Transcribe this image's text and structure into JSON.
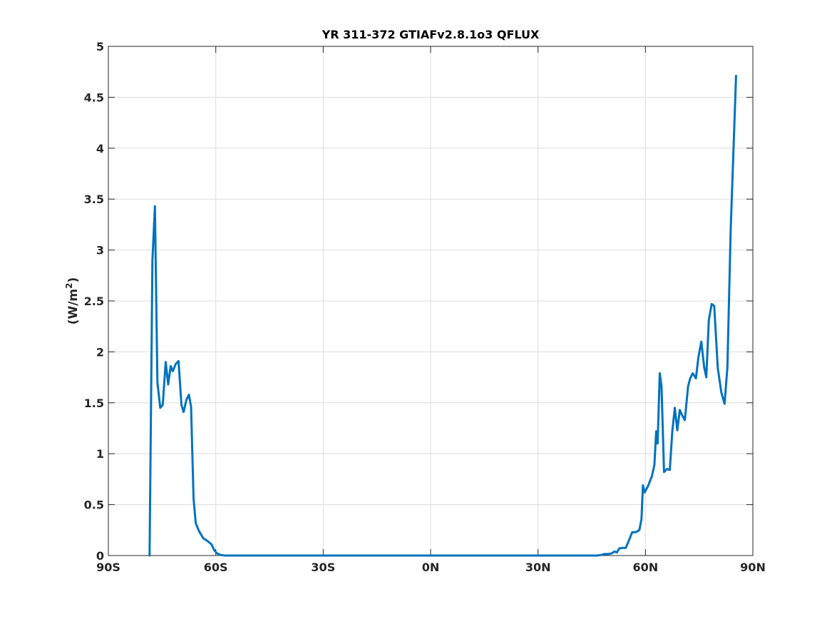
{
  "chart_data": {
    "type": "line",
    "title": "YR 311-372 GTIAFv2.8.1o3 QFLUX",
    "xlabel": "",
    "ylabel": "(W/m",
    "ylabel_superscript": "2",
    "ylabel_close": ")",
    "xlim": [
      -90,
      90
    ],
    "ylim": [
      0,
      5
    ],
    "grid": true,
    "x_ticks": [
      {
        "value": -90,
        "label": "90S"
      },
      {
        "value": -60,
        "label": "60S"
      },
      {
        "value": -30,
        "label": "30S"
      },
      {
        "value": 0,
        "label": "0N"
      },
      {
        "value": 30,
        "label": "30N"
      },
      {
        "value": 60,
        "label": "60N"
      },
      {
        "value": 90,
        "label": "90N"
      }
    ],
    "y_ticks": [
      {
        "value": 0,
        "label": "0"
      },
      {
        "value": 0.5,
        "label": "0.5"
      },
      {
        "value": 1,
        "label": "1"
      },
      {
        "value": 1.5,
        "label": "1.5"
      },
      {
        "value": 2,
        "label": "2"
      },
      {
        "value": 2.5,
        "label": "2.5"
      },
      {
        "value": 3,
        "label": "3"
      },
      {
        "value": 3.5,
        "label": "3.5"
      },
      {
        "value": 4,
        "label": "4"
      },
      {
        "value": 4.5,
        "label": "4.5"
      },
      {
        "value": 5,
        "label": "5"
      }
    ],
    "series": [
      {
        "color": "#0072bd",
        "x": [
          -78.5,
          -77.7,
          -77.0,
          -76.3,
          -75.5,
          -74.8,
          -74.0,
          -73.3,
          -72.6,
          -72.0,
          -71.2,
          -70.4,
          -69.6,
          -69.0,
          -68.2,
          -67.5,
          -66.9,
          -66.2,
          -65.6,
          -64.7,
          -63.5,
          -62.2,
          -61.2,
          -60.4,
          -59.6,
          -58.6,
          -57.3,
          -55.8,
          -55.0,
          -50.0,
          -40.0,
          -30.0,
          -20.0,
          -10.0,
          0.0,
          10.0,
          20.0,
          30.0,
          40.0,
          46.5,
          47.5,
          48.5,
          49.5,
          50.5,
          51.4,
          52.0,
          52.7,
          53.5,
          54.5,
          55.4,
          56.3,
          57.3,
          58.3,
          58.9,
          59.3,
          59.8,
          60.8,
          61.8,
          62.5,
          63.0,
          63.4,
          64.0,
          64.5,
          65.2,
          66.0,
          66.8,
          67.5,
          68.2,
          68.9,
          69.6,
          70.2,
          71.0,
          71.9,
          72.5,
          73.2,
          74.1,
          74.8,
          75.6,
          76.4,
          77.0,
          77.7,
          78.5,
          79.2,
          80.2,
          81.2,
          82.1,
          82.9,
          83.8,
          84.7,
          85.3
        ],
        "y": [
          0.0,
          2.9,
          3.43,
          1.7,
          1.45,
          1.48,
          1.9,
          1.68,
          1.86,
          1.81,
          1.88,
          1.91,
          1.48,
          1.41,
          1.53,
          1.58,
          1.46,
          0.56,
          0.32,
          0.24,
          0.17,
          0.14,
          0.11,
          0.05,
          0.02,
          0.005,
          0.0,
          0.0,
          0.0,
          0.0,
          0.0,
          0.0,
          0.0,
          0.0,
          0.0,
          0.0,
          0.0,
          0.0,
          0.0,
          0.0,
          0.005,
          0.015,
          0.015,
          0.02,
          0.04,
          0.03,
          0.07,
          0.075,
          0.075,
          0.15,
          0.23,
          0.23,
          0.25,
          0.36,
          0.69,
          0.62,
          0.69,
          0.78,
          0.89,
          1.22,
          1.1,
          1.79,
          1.66,
          0.82,
          0.85,
          0.84,
          1.22,
          1.45,
          1.23,
          1.43,
          1.38,
          1.33,
          1.66,
          1.74,
          1.79,
          1.74,
          1.95,
          2.1,
          1.85,
          1.75,
          2.31,
          2.47,
          2.45,
          1.84,
          1.6,
          1.49,
          1.85,
          3.2,
          4.1,
          4.71
        ]
      }
    ]
  }
}
